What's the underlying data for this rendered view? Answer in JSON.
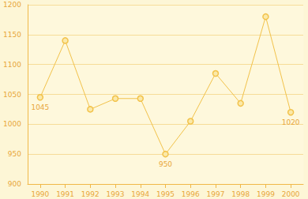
{
  "chart_data": {
    "type": "line",
    "categories": [
      "1990",
      "1991",
      "1992",
      "1993",
      "1994",
      "1995",
      "1996",
      "1997",
      "1998",
      "1999",
      "2000"
    ],
    "values": [
      1045,
      1140,
      1025,
      1043,
      1043,
      950,
      1005,
      1085,
      1035,
      1180,
      1020
    ],
    "value_labels": [
      "1045",
      null,
      null,
      null,
      null,
      "950",
      null,
      null,
      null,
      null,
      "1020"
    ],
    "color": "#f2c24a",
    "marker": "circle",
    "ylim": [
      900,
      1200
    ],
    "yticks": [
      900,
      950,
      1000,
      1050,
      1100,
      1150,
      1200
    ],
    "grid": true
  }
}
